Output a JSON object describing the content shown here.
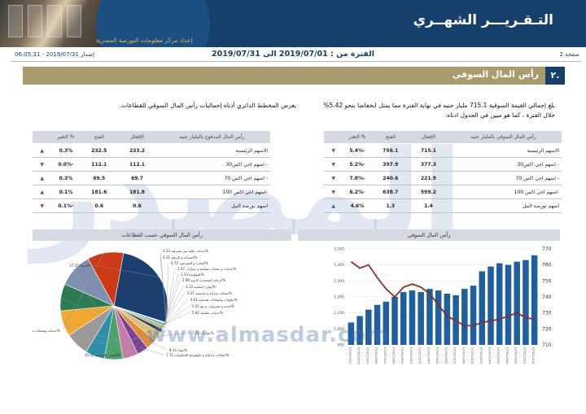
{
  "header": {
    "title": "التـقـريـــر الشهــري",
    "subtitle": "إعداد مركز معلومات البورصة المصرية"
  },
  "meta": {
    "page_label": "صفحة 2",
    "period": "الفترة من : 2019/07/01 الى 2019/07/31",
    "issued": "إصدار 2019/07/31 - 06:05:31"
  },
  "section": {
    "number": "٢.",
    "title": "رأس المال السوقي"
  },
  "paragraphs": {
    "right": "بلغ إجمالي القيمة السوقية 715.1 مليار جنيه في نهاية الفترة مما يمثل انخفاضا بنحو 5.42% خلال الفترة ، كما هو مبين في الجدول ادناه.",
    "left": "يعرض المخطط الدائري أدناه إجماليات رأس المال السوقي للقطاعات."
  },
  "table_market_cap": {
    "headers": {
      "name": "رأس المال السوقي بالمليار جنيه",
      "close": "الإقفال",
      "open": "الفتح",
      "change": "% التغير"
    },
    "rows": [
      {
        "name": "الاسهم الرئيسية",
        "close": "715.1",
        "open": "756.1",
        "change": "-5.4%",
        "dir": "down"
      },
      {
        "name": "- اسهم اجي اكس30",
        "close": "377.3",
        "open": "397.9",
        "change": "-5.2%",
        "dir": "down"
      },
      {
        "name": "- اسهم اجي اكس 70",
        "close": "221.9",
        "open": "240.6",
        "change": "-7.8%",
        "dir": "down"
      },
      {
        "name": "-اسهم اجي اكس 100",
        "close": "599.2",
        "open": "638.7",
        "change": "-6.2%",
        "dir": "down"
      },
      {
        "name": "اسهم بورصة النيل",
        "close": "1.4",
        "open": "1.3",
        "change": "4.6%",
        "dir": "up"
      }
    ]
  },
  "table_paid_cap": {
    "headers": {
      "name": "رأس المال المدفوع بالمليار جنيه",
      "close": "الإقفال",
      "open": "الفتح",
      "change": "% التغير"
    },
    "rows": [
      {
        "name": "الاسهم الرئيسية",
        "close": "233.2",
        "open": "232.5",
        "change": "0.3%",
        "dir": "up"
      },
      {
        "name": "- اسهم اجي اكس30",
        "close": "112.1",
        "open": "112.1",
        "change": "-0.0%",
        "dir": "down"
      },
      {
        "name": "- اسهم اجي اكس 70",
        "close": "69.7",
        "open": "69.5",
        "change": "0.3%",
        "dir": "up"
      },
      {
        "name": "-اسهم اجي اكس 100",
        "close": "181.8",
        "open": "181.6",
        "change": "0.1%",
        "dir": "up"
      },
      {
        "name": "اسهم بورصة النيل",
        "close": "0.6",
        "open": "0.6",
        "change": "-0.1%",
        "dir": "down"
      }
    ]
  },
  "chart_headers": {
    "pie": "رأس المال السوقي حسب القطاعات",
    "combo": "رأس المال السوقي"
  },
  "watermark": {
    "big": "المصدر",
    "url": "www.almasdar.com"
  },
  "colors": {
    "navy": "#16406b",
    "gold": "#a89b6e",
    "bar": "#1f5fa0",
    "line": "#7a1518",
    "up": "#2a5fb0",
    "down": "#c0392b"
  },
  "chart_data": [
    {
      "type": "pie",
      "title": "رأس المال السوقي حسب القطاعات",
      "slices": [
        {
          "label": "البنوك",
          "value": 27.15,
          "color": "#1b3f6e"
        },
        {
          "label": "خدمات مالية غير مصرفية",
          "value": 0.13,
          "color": "#6d8fc0"
        },
        {
          "label": "السياحة و الترفيه",
          "value": 0.21,
          "color": "#cfe0a8"
        },
        {
          "label": "التجارة و الموزعون",
          "value": 0.72,
          "color": "#5fa3c6"
        },
        {
          "label": "خدمات و منتجات صناعية و سيارات",
          "value": 1.07,
          "color": "#a6c65e"
        },
        {
          "label": "تكنولوجيا",
          "value": 1.23,
          "color": "#3b3b6e"
        },
        {
          "label": "الرعاية الصحية و الادوية",
          "value": 2.89,
          "color": "#d8c27a"
        },
        {
          "label": "موارد اساسية",
          "value": 3.13,
          "color": "#e48a3a"
        },
        {
          "label": "منتجات منزلية و شخصية",
          "value": 3.37,
          "color": "#7b3f95"
        },
        {
          "label": "مقاولات وانشاءات هندسية",
          "value": 4.61,
          "color": "#c77ba8"
        },
        {
          "label": "اغذية و مشروبات و تبغ",
          "value": 5.61,
          "color": "#4aa36a"
        },
        {
          "label": "خدمات تعليمية",
          "value": 5.82,
          "color": "#2d8fa8"
        },
        {
          "label": "عقارات",
          "value": 7.15,
          "color": "#9a9a9a"
        },
        {
          "label": "اتصالات و اعلام و تكنولوجيا المعلومات",
          "value": 7.72,
          "color": "#f0a830"
        },
        {
          "label": "بنوك",
          "value": 8.14,
          "color": "#2e7a52"
        },
        {
          "label": "الموارد الاساسية",
          "value": 10.42,
          "color": "#7f8fb0"
        },
        {
          "label": "خدمات ومنتجات صناعية",
          "value": 10.88,
          "color": "#cc3a18"
        }
      ],
      "labels_visible": [
        "27.15",
        "0.13",
        "0.21",
        "0.72",
        "1.07",
        "1.23",
        "2.89",
        "3.13",
        "3.37",
        "4.61",
        "5.61",
        "5.82",
        "7.15",
        "7.72",
        "8.14",
        "10.42",
        "10.88"
      ]
    },
    {
      "type": "bar+line",
      "title": "رأس المال السوقي",
      "categories": [
        "01/07/2019",
        "02/07/2019",
        "03/07/2019",
        "04/07/2019",
        "07/07/2019",
        "08/07/2019",
        "09/07/2019",
        "10/07/2019",
        "11/07/2019",
        "14/07/2019",
        "15/07/2019",
        "16/07/2019",
        "17/07/2019",
        "18/07/2019",
        "21/07/2019",
        "22/07/2019",
        "24/07/2019",
        "25/07/2019",
        "28/07/2019",
        "29/07/2019",
        "30/07/2019",
        "31/07/2019"
      ],
      "bars_left_axis": {
        "label": "",
        "ticks": [
          "1,500",
          "1,400",
          "1,300",
          "1,200",
          "1,100",
          "1,000",
          "900"
        ]
      },
      "line_right_axis": {
        "ticks": [
          "770",
          "760",
          "750",
          "740",
          "730",
          "720",
          "710"
        ]
      },
      "bar_values": [
        1040,
        1080,
        1120,
        1150,
        1170,
        1200,
        1230,
        1240,
        1230,
        1250,
        1240,
        1220,
        1210,
        1250,
        1270,
        1360,
        1390,
        1410,
        1400,
        1420,
        1430,
        1460
      ],
      "line_values": [
        762,
        758,
        760,
        752,
        745,
        740,
        746,
        748,
        746,
        742,
        735,
        728,
        725,
        722,
        722,
        724,
        725,
        726,
        728,
        730,
        727,
        726
      ]
    }
  ]
}
